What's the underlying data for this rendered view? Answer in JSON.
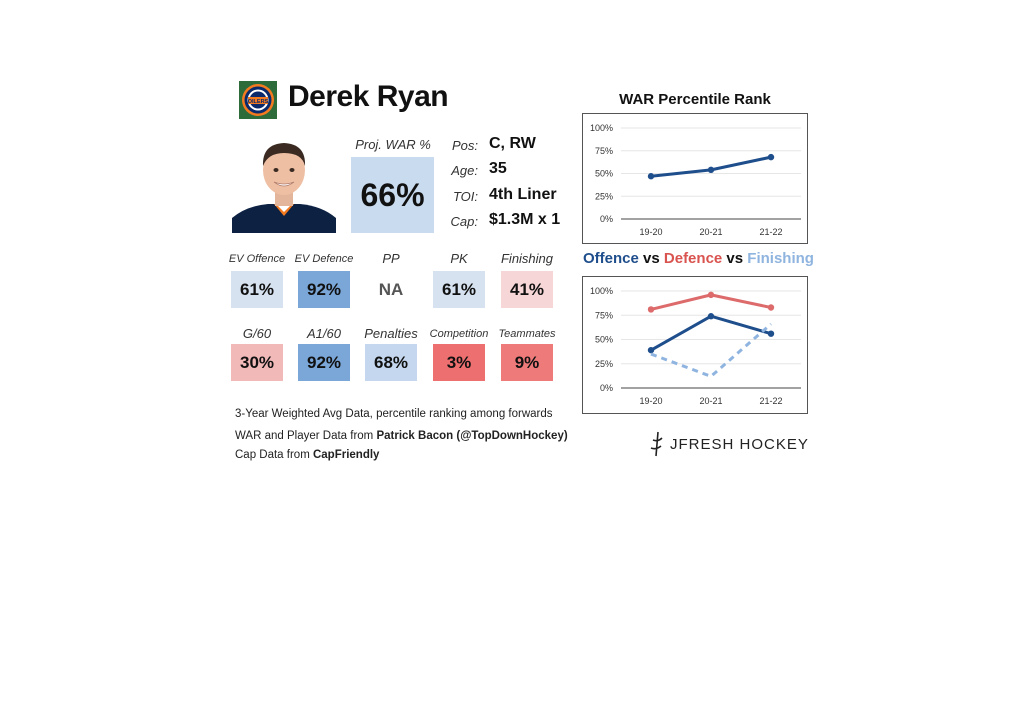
{
  "player": {
    "name": "Derek Ryan",
    "team_logo_text": "OILERS"
  },
  "proj_war": {
    "label": "Proj. WAR %",
    "value": "66%"
  },
  "info": [
    {
      "label": "Pos:",
      "value": "C, RW"
    },
    {
      "label": "Age:",
      "value": "35"
    },
    {
      "label": "TOI:",
      "value": "4th Liner"
    },
    {
      "label": "Cap:",
      "value": "$1.3M x 1"
    }
  ],
  "stats_row1": [
    {
      "label": "EV Offence",
      "value": "61%",
      "color": "#d6e2f0"
    },
    {
      "label": "EV Defence",
      "value": "92%",
      "color": "#7aa6d8"
    },
    {
      "label": "PP",
      "value": "NA",
      "color": "#ffffff"
    },
    {
      "label": "PK",
      "value": "61%",
      "color": "#d6e2f0"
    },
    {
      "label": "Finishing",
      "value": "41%",
      "color": "#f6d6d6"
    }
  ],
  "stats_row2": [
    {
      "label": "G/60",
      "value": "30%",
      "color": "#f2b9b9"
    },
    {
      "label": "A1/60",
      "value": "92%",
      "color": "#7aa6d8"
    },
    {
      "label": "Penalties",
      "value": "68%",
      "color": "#c4d7ee"
    },
    {
      "label": "Competition",
      "value": "3%",
      "color": "#ee6f6f"
    },
    {
      "label": "Teammates",
      "value": "9%",
      "color": "#ef7a7a"
    }
  ],
  "footnotes": {
    "line1": "3-Year Weighted Avg Data, percentile ranking among forwards",
    "line2_prefix": "WAR and Player Data from ",
    "line2_bold": "Patrick Bacon (@TopDownHockey)",
    "line3_prefix": "Cap Data from ",
    "line3_bold": "CapFriendly"
  },
  "brand": "JFRESH HOCKEY",
  "chart2_title": {
    "offence": "Offence",
    "vs1": " vs ",
    "defence": "Defence",
    "vs2": " vs ",
    "finishing": "Finishing"
  },
  "colors": {
    "offence": "#1f4e8c",
    "defence": "#d9534f",
    "finishing": "#8fb4df",
    "war_line": "#1f4e8c",
    "defence_line": "#dd6b6b"
  },
  "chart_data": [
    {
      "type": "line",
      "title": "WAR Percentile Rank",
      "categories": [
        "19-20",
        "20-21",
        "21-22"
      ],
      "series": [
        {
          "values": [
            47,
            54,
            68
          ]
        }
      ],
      "ylim": [
        0,
        100
      ],
      "yticks": [
        "0%",
        "25%",
        "50%",
        "75%",
        "100%"
      ],
      "grid": true
    },
    {
      "type": "line",
      "title": "Offence vs Defence vs Finishing",
      "categories": [
        "19-20",
        "20-21",
        "21-22"
      ],
      "series": [
        {
          "name": "Offence",
          "values": [
            39,
            74,
            56
          ]
        },
        {
          "name": "Defence",
          "values": [
            81,
            96,
            83
          ]
        },
        {
          "name": "Finishing",
          "values": [
            35,
            12,
            66
          ]
        }
      ],
      "ylim": [
        0,
        100
      ],
      "yticks": [
        "0%",
        "25%",
        "50%",
        "75%",
        "100%"
      ],
      "grid": true
    }
  ]
}
